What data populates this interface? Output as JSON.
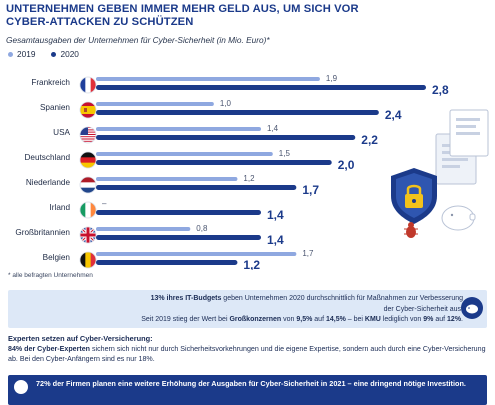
{
  "header": {
    "title_line1": "UNTERNEHMEN GEBEN IMMER MEHR GELD AUS, UM SICH VOR",
    "title_line2": "CYBER-ATTACKEN ZU SCHÜTZEN",
    "subtitle": "Gesamtausgaben der Unternehmen für Cyber-Sicherheit (in Mio. Euro)*"
  },
  "colors": {
    "series_2019": "#8fa8e0",
    "series_2020": "#1b3a8a",
    "brand_navy": "#1b3a8a",
    "panel_light_blue": "#dde8f7"
  },
  "icons": [
    "shield-lock-icon",
    "bug-icon",
    "document-icon",
    "piggy-bank-icon",
    "info-icon"
  ],
  "chart_data": {
    "type": "bar",
    "orientation": "horizontal",
    "categories": [
      "Frankreich",
      "Spanien",
      "USA",
      "Deutschland",
      "Niederlande",
      "Irland",
      "Großbritannien",
      "Belgien"
    ],
    "series": [
      {
        "name": "2019",
        "values": [
          1.9,
          1.0,
          1.4,
          1.5,
          1.2,
          null,
          0.8,
          1.7
        ],
        "labels": [
          "1,9",
          "1,0",
          "1,4",
          "1,5",
          "1,2",
          "–",
          "0,8",
          "1,7"
        ]
      },
      {
        "name": "2020",
        "values": [
          2.8,
          2.4,
          2.2,
          2.0,
          1.7,
          1.4,
          1.4,
          1.2
        ],
        "labels": [
          "2,8",
          "2,4",
          "2,2",
          "2,0",
          "1,7",
          "1,4",
          "1,4",
          "1,2"
        ]
      }
    ],
    "flags": [
      "france",
      "spain",
      "usa",
      "germany",
      "netherlands",
      "ireland",
      "uk",
      "belgium"
    ],
    "xlim": [
      0,
      2.8
    ],
    "legend_position": "top-left"
  },
  "footnote": "* alle befragten Unternehmen",
  "info1": {
    "l1_bold": "13% ihres IT-Budgets",
    "l1_rest": " geben Unternehmen 2020 durchschnittlich für Maßnahmen zur Verbesserung",
    "l2": "der Cyber-Sicherheit aus.",
    "l3_a": "Seit 2019 stieg der Wert bei ",
    "l3_b": "Großkonzernen",
    "l3_c": " von ",
    "l3_d": "9,5%",
    "l3_e": " auf ",
    "l3_f": "14,5%",
    "l3_g": " – bei ",
    "l3_h": "KMU",
    "l3_i": " lediglich von ",
    "l3_j": "9%",
    "l3_k": " auf ",
    "l3_l": "12%",
    "l3_m": "."
  },
  "experts": {
    "title": "Experten setzen auf Cyber-Versicherung:",
    "bold": "84% der Cyber-Experten",
    "text": " sichern sich nicht nur durch Sicherheitsvorkehrungen und die eigene Expertise, sondern auch durch eine Cyber-Versicherung ab. Bei den Cyber-Anfängern sind es nur 18%."
  },
  "info2": {
    "text": "72% der Firmen planen eine weitere Erhöhung der Ausgaben für Cyber-Sicherheit in 2021 – eine dringend nötige Investition."
  }
}
